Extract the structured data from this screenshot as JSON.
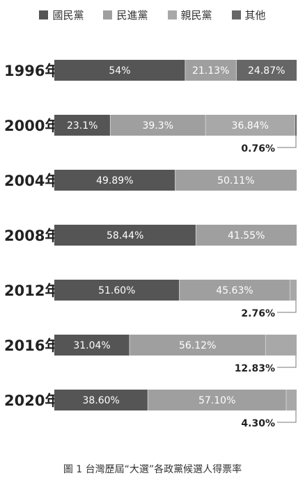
{
  "chart_data": {
    "type": "bar",
    "orientation": "horizontal",
    "stacked": true,
    "legend_position": "top",
    "series_names": [
      "國民黨",
      "民進黨",
      "親民黨",
      "其他"
    ],
    "colors": [
      "#555555",
      "#9f9f9f",
      "#a8a8a8",
      "#666666"
    ],
    "rows": [
      {
        "year": "1996年",
        "segments": [
          {
            "series": 0,
            "value": 54,
            "label": "54%"
          },
          {
            "series": 1,
            "value": 21.13,
            "label": "21.13%"
          },
          {
            "series": 3,
            "value": 24.87,
            "label": "24.87%"
          }
        ]
      },
      {
        "year": "2000年",
        "segments": [
          {
            "series": 0,
            "value": 23.1,
            "label": "23.1%"
          },
          {
            "series": 1,
            "value": 39.3,
            "label": "39.3%"
          },
          {
            "series": 2,
            "value": 36.84,
            "label": "36.84%"
          },
          {
            "series": 3,
            "value": 0.76,
            "label": "0.76%",
            "callout": true
          }
        ]
      },
      {
        "year": "2004年",
        "segments": [
          {
            "series": 0,
            "value": 49.89,
            "label": "49.89%"
          },
          {
            "series": 1,
            "value": 50.11,
            "label": "50.11%"
          }
        ]
      },
      {
        "year": "2008年",
        "segments": [
          {
            "series": 0,
            "value": 58.44,
            "label": "58.44%"
          },
          {
            "series": 1,
            "value": 41.55,
            "label": "41.55%"
          }
        ]
      },
      {
        "year": "2012年",
        "segments": [
          {
            "series": 0,
            "value": 51.6,
            "label": "51.60%"
          },
          {
            "series": 1,
            "value": 45.63,
            "label": "45.63%"
          },
          {
            "series": 2,
            "value": 2.76,
            "label": "2.76%",
            "callout": true
          }
        ]
      },
      {
        "year": "2016年",
        "segments": [
          {
            "series": 0,
            "value": 31.04,
            "label": "31.04%"
          },
          {
            "series": 1,
            "value": 56.12,
            "label": "56.12%"
          },
          {
            "series": 2,
            "value": 12.83,
            "label": "12.83%",
            "callout": true
          }
        ]
      },
      {
        "year": "2020年",
        "segments": [
          {
            "series": 0,
            "value": 38.6,
            "label": "38.60%"
          },
          {
            "series": 1,
            "value": 57.1,
            "label": "57.10%"
          },
          {
            "series": 2,
            "value": 4.3,
            "label": "4.30%",
            "callout": true
          }
        ]
      }
    ]
  },
  "caption": "圖 1 台灣歷屆“大選”各政黨候選人得票率"
}
